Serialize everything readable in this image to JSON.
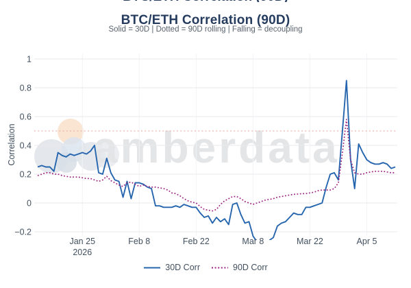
{
  "title": "BTC/ETH Correlation (90D)",
  "subtitle": "Solid = 30D | Dotted = 90D rolling | Falling = decoupling",
  "watermark": {
    "text": "amberdata"
  },
  "chart_data": {
    "type": "line",
    "title": "BTC/ETH Correlation (90D)",
    "subtitle": "Solid = 30D | Dotted = 90D rolling | Falling = decoupling",
    "xlabel": "",
    "ylabel": "Correlation",
    "ylim": [
      -0.2,
      1
    ],
    "grid": {
      "horizontal_color": "#e8eaed",
      "vertical_color": "#f1f3f5"
    },
    "legend_position": "bottom",
    "x_start_date": "2026-01-14",
    "x_frequency": "daily",
    "x_count": 89,
    "yticks": [
      {
        "value": 1,
        "label": "1"
      },
      {
        "value": 0.8,
        "label": "0.8"
      },
      {
        "value": 0.6,
        "label": "0.6"
      },
      {
        "value": 0.4,
        "label": "0.4"
      },
      {
        "value": 0.2,
        "label": "0.2"
      },
      {
        "value": 0,
        "label": "0"
      },
      {
        "value": -0.2,
        "label": "−0.2"
      }
    ],
    "xticks": [
      {
        "day_index": 11,
        "label": "Jan 25",
        "sublabel": "2026"
      },
      {
        "day_index": 25,
        "label": "Feb 8"
      },
      {
        "day_index": 39,
        "label": "Feb 22"
      },
      {
        "day_index": 53,
        "label": "Mar 8"
      },
      {
        "day_index": 67,
        "label": "Mar 22"
      },
      {
        "day_index": 81,
        "label": "Apr 5"
      }
    ],
    "reference_line": {
      "value": 0.5,
      "color": "#e7a29c",
      "style": "dotted"
    },
    "series": [
      {
        "id": "30d",
        "name": "30D Corr",
        "color": "#2565ae",
        "dash": "solid",
        "width": 1.9,
        "values": [
          0.25,
          0.26,
          0.25,
          0.25,
          0.22,
          0.35,
          0.33,
          0.32,
          0.34,
          0.33,
          0.34,
          0.35,
          0.34,
          0.36,
          0.4,
          0.21,
          0.2,
          0.31,
          0.21,
          0.16,
          0.15,
          0.04,
          0.15,
          0.03,
          0.14,
          0.14,
          0.13,
          0.11,
          0.1,
          -0.02,
          -0.02,
          -0.03,
          -0.03,
          -0.03,
          -0.02,
          -0.03,
          -0.01,
          -0.02,
          -0.03,
          -0.03,
          -0.07,
          -0.1,
          -0.09,
          -0.14,
          -0.1,
          -0.13,
          -0.11,
          -0.15,
          -0.01,
          0.0,
          -0.08,
          -0.14,
          -0.13,
          -0.23,
          -0.27,
          -0.28,
          -0.27,
          -0.26,
          -0.24,
          -0.16,
          -0.14,
          -0.13,
          -0.1,
          -0.07,
          -0.08,
          -0.08,
          -0.03,
          -0.03,
          -0.02,
          -0.01,
          0.0,
          0.11,
          0.2,
          0.21,
          0.16,
          0.5,
          0.85,
          0.3,
          0.1,
          0.41,
          0.35,
          0.3,
          0.28,
          0.27,
          0.27,
          0.28,
          0.27,
          0.24,
          0.25
        ]
      },
      {
        "id": "90d",
        "name": "90D Corr",
        "color": "#9c2180",
        "dash": "dotted",
        "width": 1.7,
        "values": [
          0.19,
          0.2,
          0.21,
          0.21,
          0.2,
          0.2,
          0.19,
          0.185,
          0.18,
          0.18,
          0.18,
          0.175,
          0.17,
          0.17,
          0.16,
          0.15,
          0.16,
          0.185,
          0.155,
          0.14,
          0.125,
          0.115,
          0.14,
          0.145,
          0.13,
          0.115,
          0.125,
          0.115,
          0.11,
          0.11,
          0.105,
          0.1,
          0.09,
          0.07,
          0.065,
          0.05,
          0.03,
          0.015,
          0.005,
          0.0,
          -0.025,
          -0.045,
          -0.05,
          -0.055,
          -0.045,
          -0.01,
          0.015,
          0.03,
          0.045,
          0.045,
          0.03,
          0.01,
          0.0,
          -0.01,
          0.0,
          0.01,
          0.02,
          0.025,
          0.03,
          0.04,
          0.045,
          0.05,
          0.055,
          0.06,
          0.062,
          0.065,
          0.065,
          0.07,
          0.075,
          0.085,
          0.09,
          0.09,
          0.09,
          0.1,
          0.14,
          0.35,
          0.58,
          0.3,
          0.21,
          0.2,
          0.2,
          0.21,
          0.215,
          0.22,
          0.22,
          0.22,
          0.215,
          0.21,
          0.21
        ]
      }
    ]
  }
}
